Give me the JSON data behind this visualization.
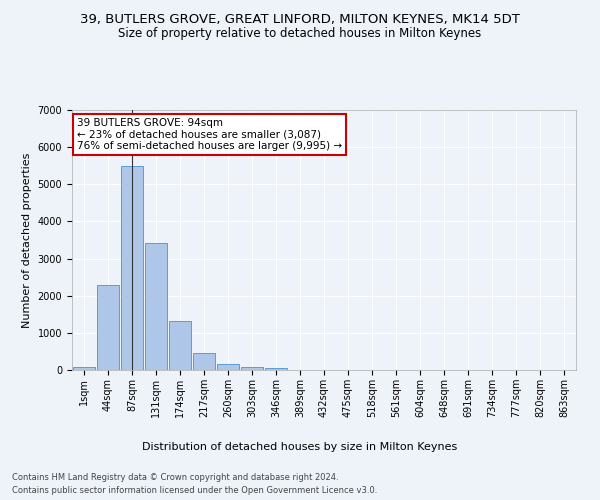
{
  "title": "39, BUTLERS GROVE, GREAT LINFORD, MILTON KEYNES, MK14 5DT",
  "subtitle": "Size of property relative to detached houses in Milton Keynes",
  "xlabel": "Distribution of detached houses by size in Milton Keynes",
  "ylabel": "Number of detached properties",
  "footer_line1": "Contains HM Land Registry data © Crown copyright and database right 2024.",
  "footer_line2": "Contains public sector information licensed under the Open Government Licence v3.0.",
  "bar_labels": [
    "1sqm",
    "44sqm",
    "87sqm",
    "131sqm",
    "174sqm",
    "217sqm",
    "260sqm",
    "303sqm",
    "346sqm",
    "389sqm",
    "432sqm",
    "475sqm",
    "518sqm",
    "561sqm",
    "604sqm",
    "648sqm",
    "691sqm",
    "734sqm",
    "777sqm",
    "820sqm",
    "863sqm"
  ],
  "bar_values": [
    80,
    2280,
    5480,
    3430,
    1310,
    470,
    160,
    80,
    45,
    0,
    0,
    0,
    0,
    0,
    0,
    0,
    0,
    0,
    0,
    0,
    0
  ],
  "bar_color": "#aec6e8",
  "bar_edge_color": "#5b9bd5",
  "ylim": [
    0,
    7000
  ],
  "yticks": [
    0,
    1000,
    2000,
    3000,
    4000,
    5000,
    6000,
    7000
  ],
  "annotation_text": "39 BUTLERS GROVE: 94sqm\n← 23% of detached houses are smaller (3,087)\n76% of semi-detached houses are larger (9,995) →",
  "annotation_box_color": "#ffffff",
  "annotation_box_edge": "#cc0000",
  "vline_x_index": 2,
  "background_color": "#eef3fa",
  "grid_color": "#ffffff",
  "title_fontsize": 9.5,
  "subtitle_fontsize": 8.5,
  "axis_label_fontsize": 8,
  "tick_fontsize": 7
}
